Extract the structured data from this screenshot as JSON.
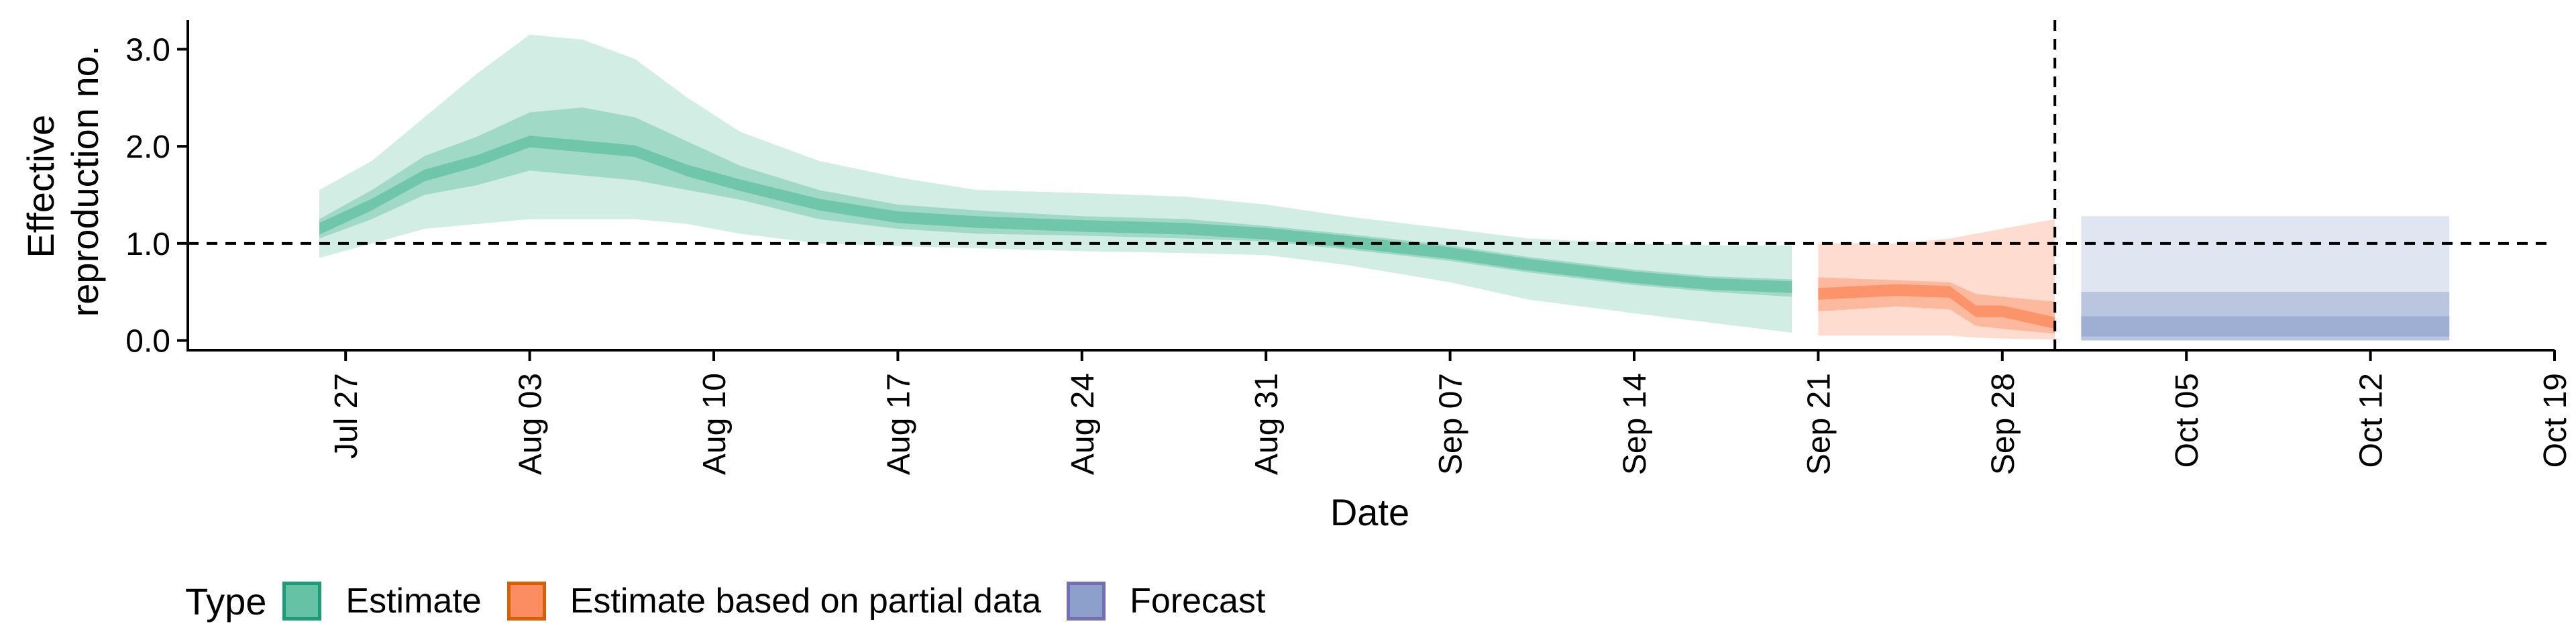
{
  "chart_data": {
    "type": "area",
    "title": "",
    "xlabel": "Date",
    "ylabel": "Effective reproduction no.",
    "ylabel_lines": [
      "Effective",
      "reproduction no."
    ],
    "x_ticks": [
      "2021-07-27",
      "2021-08-03",
      "2021-08-10",
      "2021-08-17",
      "2021-08-24",
      "2021-08-31",
      "2021-09-07",
      "2021-09-14",
      "2021-09-21",
      "2021-09-28",
      "2021-10-05",
      "2021-10-12",
      "2021-10-19"
    ],
    "x_tick_labels": [
      "Jul 27",
      "Aug 03",
      "Aug 10",
      "Aug 17",
      "Aug 24",
      "Aug 31",
      "Sep 07",
      "Sep 14",
      "Sep 21",
      "Sep 28",
      "Oct 05",
      "Oct 12",
      "Oct 19"
    ],
    "xlim": [
      "2021-07-21",
      "2021-10-19"
    ],
    "ylim": [
      -0.1,
      3.3
    ],
    "y_ticks": [
      0.0,
      1.0,
      2.0,
      3.0
    ],
    "y_tick_labels": [
      "0.0",
      "1.0",
      "2.0",
      "3.0"
    ],
    "reference_lines": {
      "horizontal_y": 1.0,
      "vertical_x": "2021-09-30"
    },
    "legend": {
      "title": "Type",
      "position": "bottom-left"
    },
    "grid": false,
    "series": [
      {
        "name": "Estimate",
        "color": "#66c2a5",
        "border_color": "#1b9e77",
        "points": [
          {
            "x": "2021-07-26",
            "median": 1.15,
            "q25": 1.05,
            "q75": 1.25,
            "q05": 0.85,
            "q95": 1.55
          },
          {
            "x": "2021-07-28",
            "median": 1.4,
            "q25": 1.25,
            "q75": 1.55,
            "q05": 1.0,
            "q95": 1.85
          },
          {
            "x": "2021-07-30",
            "median": 1.7,
            "q25": 1.5,
            "q75": 1.9,
            "q05": 1.15,
            "q95": 2.3
          },
          {
            "x": "2021-08-01",
            "median": 1.85,
            "q25": 1.6,
            "q75": 2.1,
            "q05": 1.2,
            "q95": 2.75
          },
          {
            "x": "2021-08-03",
            "median": 2.05,
            "q25": 1.75,
            "q75": 2.35,
            "q05": 1.25,
            "q95": 3.15
          },
          {
            "x": "2021-08-05",
            "median": 2.0,
            "q25": 1.7,
            "q75": 2.4,
            "q05": 1.25,
            "q95": 3.1
          },
          {
            "x": "2021-08-07",
            "median": 1.95,
            "q25": 1.65,
            "q75": 2.3,
            "q05": 1.25,
            "q95": 2.9
          },
          {
            "x": "2021-08-09",
            "median": 1.75,
            "q25": 1.55,
            "q75": 2.05,
            "q05": 1.2,
            "q95": 2.5
          },
          {
            "x": "2021-08-11",
            "median": 1.6,
            "q25": 1.45,
            "q75": 1.8,
            "q05": 1.1,
            "q95": 2.15
          },
          {
            "x": "2021-08-14",
            "median": 1.4,
            "q25": 1.25,
            "q75": 1.55,
            "q05": 1.0,
            "q95": 1.85
          },
          {
            "x": "2021-08-17",
            "median": 1.27,
            "q25": 1.15,
            "q75": 1.4,
            "q05": 0.97,
            "q95": 1.68
          },
          {
            "x": "2021-08-20",
            "median": 1.22,
            "q25": 1.1,
            "q75": 1.34,
            "q05": 0.95,
            "q95": 1.55
          },
          {
            "x": "2021-08-24",
            "median": 1.18,
            "q25": 1.08,
            "q75": 1.28,
            "q05": 0.92,
            "q95": 1.52
          },
          {
            "x": "2021-08-28",
            "median": 1.15,
            "q25": 1.05,
            "q75": 1.25,
            "q05": 0.9,
            "q95": 1.48
          },
          {
            "x": "2021-08-31",
            "median": 1.1,
            "q25": 1.02,
            "q75": 1.18,
            "q05": 0.88,
            "q95": 1.4
          },
          {
            "x": "2021-09-03",
            "median": 1.02,
            "q25": 0.94,
            "q75": 1.1,
            "q05": 0.78,
            "q95": 1.28
          },
          {
            "x": "2021-09-07",
            "median": 0.9,
            "q25": 0.82,
            "q75": 0.98,
            "q05": 0.6,
            "q95": 1.15
          },
          {
            "x": "2021-09-10",
            "median": 0.78,
            "q25": 0.7,
            "q75": 0.86,
            "q05": 0.42,
            "q95": 1.05
          },
          {
            "x": "2021-09-14",
            "median": 0.65,
            "q25": 0.57,
            "q75": 0.73,
            "q05": 0.28,
            "q95": 1.0
          },
          {
            "x": "2021-09-17",
            "median": 0.58,
            "q25": 0.5,
            "q75": 0.66,
            "q05": 0.18,
            "q95": 0.98
          },
          {
            "x": "2021-09-20",
            "median": 0.55,
            "q25": 0.45,
            "q75": 0.63,
            "q05": 0.08,
            "q95": 0.98
          }
        ]
      },
      {
        "name": "Estimate based on partial data",
        "color": "#fc8d62",
        "border_color": "#d95f02",
        "points": [
          {
            "x": "2021-09-21",
            "median": 0.48,
            "q25": 0.3,
            "q75": 0.65,
            "q05": 0.05,
            "q95": 1.0
          },
          {
            "x": "2021-09-24",
            "median": 0.52,
            "q25": 0.35,
            "q75": 0.62,
            "q05": 0.05,
            "q95": 1.0
          },
          {
            "x": "2021-09-26",
            "median": 0.5,
            "q25": 0.32,
            "q75": 0.6,
            "q05": 0.05,
            "q95": 1.05
          },
          {
            "x": "2021-09-27",
            "median": 0.3,
            "q25": 0.15,
            "q75": 0.48,
            "q05": 0.03,
            "q95": 1.1
          },
          {
            "x": "2021-09-28",
            "median": 0.3,
            "q25": 0.12,
            "q75": 0.45,
            "q05": 0.02,
            "q95": 1.15
          },
          {
            "x": "2021-09-30",
            "median": 0.18,
            "q25": 0.07,
            "q75": 0.4,
            "q05": 0.01,
            "q95": 1.25
          }
        ]
      },
      {
        "name": "Forecast",
        "color": "#8da0cb",
        "border_color": "#7570b3",
        "points": [
          {
            "x": "2021-10-01",
            "median": 0.12,
            "q25": 0.04,
            "q75": 0.25,
            "q05": 0.0,
            "q95": 1.28
          },
          {
            "x": "2021-10-15",
            "median": 0.12,
            "q25": 0.04,
            "q75": 0.25,
            "q05": 0.0,
            "q95": 1.28
          }
        ]
      }
    ]
  }
}
